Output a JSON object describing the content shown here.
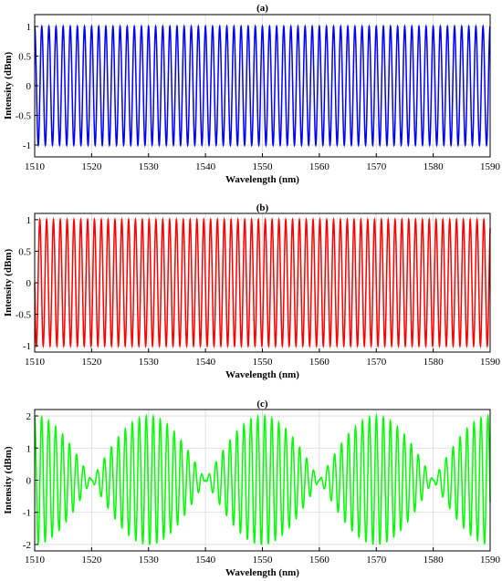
{
  "chart_data": [
    {
      "type": "line",
      "title": "(a)",
      "xlabel": "Wavelength (nm)",
      "ylabel": "Intensity (dBm)",
      "xlim": [
        1510,
        1590
      ],
      "ylim": [
        -1.2,
        1.2
      ],
      "xticks": [
        1510,
        1520,
        1530,
        1540,
        1550,
        1560,
        1570,
        1580,
        1590
      ],
      "yticks": [
        -1,
        -0.5,
        0,
        0.5,
        1
      ],
      "grid": true,
      "series": [
        {
          "color": "#0000ff",
          "function": "cos(2*pi*(x-1510)/1.25)",
          "x_start": 1510,
          "x_end": 1590,
          "period_nm": 1.25,
          "amplitude": 1,
          "min": -1,
          "max": 1
        }
      ]
    },
    {
      "type": "line",
      "title": "(b)",
      "xlabel": "Wavelength (nm)",
      "ylabel": "Intensity (dBm)",
      "xlim": [
        1510,
        1590
      ],
      "ylim": [
        -1.1,
        1.1
      ],
      "xticks": [
        1510,
        1520,
        1530,
        1540,
        1550,
        1560,
        1570,
        1580,
        1590
      ],
      "yticks": [
        -1,
        -0.5,
        0,
        0.5,
        1
      ],
      "grid": true,
      "series": [
        {
          "color": "#ff0000",
          "function": "cos(2*pi*(x-1510)/1.2 + pi/2)",
          "x_start": 1510,
          "x_end": 1590,
          "period_nm": 1.2,
          "amplitude": 1,
          "min": -1,
          "max": 1
        }
      ]
    },
    {
      "type": "line",
      "title": "(c)",
      "xlabel": "Wavelength (nm)",
      "ylabel": "Intensity (dBm)",
      "xlim": [
        1510,
        1590
      ],
      "ylim": [
        -2.2,
        2.2
      ],
      "xticks": [
        1510,
        1520,
        1530,
        1540,
        1550,
        1560,
        1570,
        1580,
        1590
      ],
      "yticks": [
        -2,
        -1,
        0,
        1,
        2
      ],
      "grid": true,
      "series": [
        {
          "color": "#00ff00",
          "function": "sum of the two signals (a)+(b)",
          "x_start": 1510,
          "x_end": 1590,
          "beat_envelope_peaks_nm": [
            1510,
            1530,
            1550,
            1570,
            1590
          ],
          "beat_envelope_nulls_nm": [
            1520,
            1540,
            1560,
            1580
          ],
          "min": -2,
          "max": 2
        }
      ]
    }
  ],
  "colors": {
    "panel_a": "#0000ff",
    "panel_b": "#ff0000",
    "panel_c": "#00ff00",
    "grid": "#d9d9d9",
    "axes": "#000000"
  }
}
